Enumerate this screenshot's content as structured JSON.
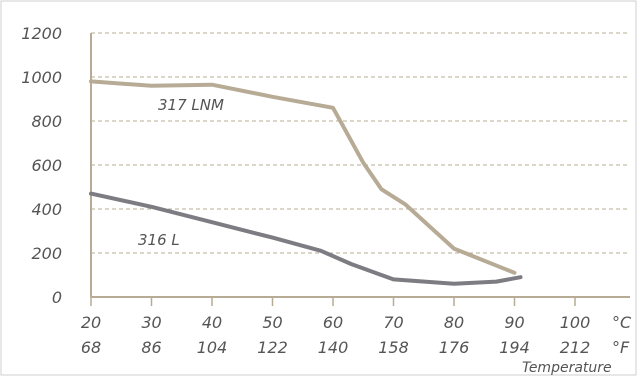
{
  "chart_data": {
    "type": "line",
    "title": "",
    "xlabel": "Temperature",
    "ylabel": "",
    "unit_c": "°C",
    "unit_f": "°F",
    "x_celsius_ticks": [
      "20",
      "30",
      "40",
      "50",
      "60",
      "70",
      "80",
      "90",
      "100"
    ],
    "x_fahrenheit_ticks": [
      "68",
      "86",
      "104",
      "122",
      "140",
      "158",
      "176",
      "194",
      "212"
    ],
    "y_ticks": [
      "1200",
      "1000",
      "800",
      "600",
      "400",
      "200",
      "0"
    ],
    "xlim": [
      20,
      100
    ],
    "ylim": [
      0,
      1200
    ],
    "grid_y": true,
    "series": [
      {
        "name": "317 LNM",
        "color": "#b8ab96",
        "x": [
          20,
          30,
          40,
          50,
          60,
          65,
          68,
          72,
          80,
          90
        ],
        "y": [
          980,
          960,
          965,
          910,
          860,
          610,
          490,
          420,
          220,
          110
        ]
      },
      {
        "name": "316  L",
        "color": "#7c7c82",
        "x": [
          20,
          30,
          40,
          50,
          58,
          63,
          70,
          80,
          87,
          91
        ],
        "y": [
          470,
          410,
          340,
          270,
          210,
          150,
          80,
          60,
          70,
          90
        ]
      }
    ]
  }
}
